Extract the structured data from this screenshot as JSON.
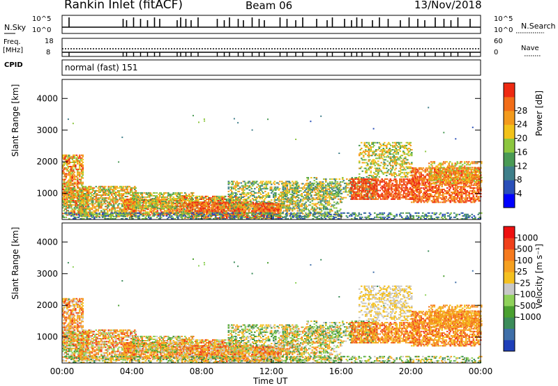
{
  "header": {
    "station": "Rankin Inlet (fitACF)",
    "beam": "Beam 06",
    "date": "13/Nov/2018"
  },
  "noise_panel": {
    "left_label": "N.Sky",
    "right_label": "N.Search",
    "left_ticks": [
      "10^5",
      "10^0"
    ],
    "right_ticks": [
      "10^5",
      "10^0"
    ]
  },
  "freq_panel": {
    "left_label_1": "Freq.",
    "left_label_2": "[MHz]",
    "right_label": "Nave",
    "left_ticks": [
      "18",
      "8"
    ],
    "right_ticks": [
      "60",
      "0"
    ]
  },
  "cpid_panel": {
    "label": "CPID",
    "text": "normal (fast) 151"
  },
  "chart_data": [
    {
      "type": "heatmap",
      "name": "power",
      "ylabel": "Slant Range [km]",
      "xlabel": "",
      "yticks": [
        "1000",
        "2000",
        "3000",
        "4000"
      ],
      "ylim": [
        180,
        4600
      ],
      "xticks": [
        "00:00",
        "04:00",
        "08:00",
        "12:00",
        "16:00",
        "20:00",
        "00:00"
      ],
      "xlim": [
        0,
        24
      ],
      "colorbar": {
        "label": "Power [dB]",
        "ticks": [
          "4",
          "8",
          "12",
          "16",
          "20",
          "24",
          "28"
        ],
        "colors": [
          "#0000ff",
          "#2a4fb8",
          "#3f7f8a",
          "#4a9a55",
          "#8cc63f",
          "#f2c21a",
          "#f39a1c",
          "#f26d18",
          "#ee2a12"
        ]
      }
    },
    {
      "type": "heatmap",
      "name": "velocity",
      "ylabel": "Slant Range [km]",
      "xlabel": "Time UT",
      "yticks": [
        "1000",
        "2000",
        "3000",
        "4000"
      ],
      "ylim": [
        180,
        4600
      ],
      "xticks": [
        "00:00",
        "04:00",
        "08:00",
        "12:00",
        "16:00",
        "20:00",
        "00:00"
      ],
      "xlim": [
        0,
        24
      ],
      "colorbar": {
        "label": "Velocity [m s⁻¹]",
        "ticks": [
          "1000",
          "500",
          "100",
          "25",
          "-25",
          "-100",
          "-500",
          "-1000"
        ],
        "colors": [
          "#1f3fb8",
          "#3f6fa8",
          "#3c8c5a",
          "#4aa030",
          "#8fd15a",
          "#c8c8c8",
          "#f4c020",
          "#f5a020",
          "#f57a1e",
          "#f0401a",
          "#ee1010"
        ]
      }
    }
  ]
}
